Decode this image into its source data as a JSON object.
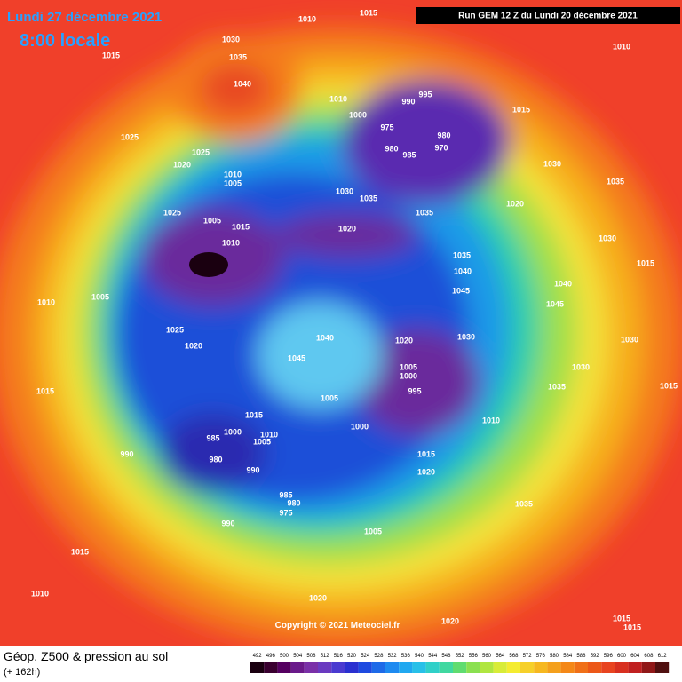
{
  "header": {
    "date": "Lundi 27 décembre 2021",
    "time": "8:00 locale",
    "run": "Run GEM 12 Z du Lundi 20 décembre 2021"
  },
  "copyright": "Copyright © 2021 Meteociel.fr",
  "footer": {
    "title": "Géop. Z500 & pression au sol",
    "subtitle": "(+ 162h)"
  },
  "legend": {
    "ticks": [
      492,
      496,
      500,
      504,
      508,
      512,
      516,
      520,
      524,
      528,
      532,
      536,
      540,
      544,
      548,
      552,
      556,
      560,
      564,
      568,
      572,
      576,
      580,
      584,
      588,
      592,
      596,
      600,
      604,
      608,
      612
    ]
  },
  "isobar_labels": [
    "1010",
    "1015",
    "1030",
    "1035",
    "1040",
    "1015",
    "1025",
    "1025",
    "1020",
    "1010",
    "1005",
    "1010",
    "1000",
    "995",
    "990",
    "975",
    "980",
    "985",
    "980",
    "970",
    "1015",
    "1030",
    "1035",
    "1010",
    "1030",
    "1035",
    "1035",
    "1020",
    "1025",
    "1005",
    "1015",
    "1010",
    "1020",
    "1035",
    "1040",
    "1045",
    "1030",
    "1015",
    "1040",
    "1045",
    "1010",
    "1005",
    "1025",
    "1020",
    "1040",
    "1045",
    "1020",
    "1030",
    "1005",
    "1000",
    "995",
    "1005",
    "1000",
    "1010",
    "1015",
    "1020",
    "1030",
    "1030",
    "1035",
    "1015",
    "1015",
    "1015",
    "1000",
    "1010",
    "1005",
    "985",
    "990",
    "980",
    "990",
    "985",
    "980",
    "975",
    "990",
    "1005",
    "1035",
    "1015",
    "1010",
    "1020",
    "1020",
    "1015",
    "1015"
  ]
}
